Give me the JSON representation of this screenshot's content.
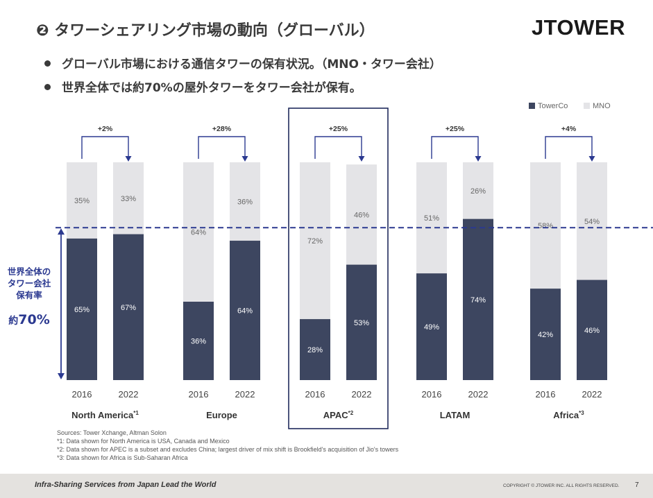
{
  "header": {
    "title": "❷ タワーシェアリング市場の動向（グローバル）",
    "logo": "JTOWER"
  },
  "bullets": [
    "グローバル市場における通信タワーの保有状況。（MNO・タワー会社）",
    "世界全体では約70%の屋外タワーをタワー会社が保有。"
  ],
  "chart_data": {
    "type": "bar",
    "stacked": true,
    "percent_stacked": true,
    "legend": {
      "position": "top-right",
      "items": [
        {
          "name": "TowerCo",
          "color": "#3d4660"
        },
        {
          "name": "MNO",
          "color": "#e4e4e7"
        }
      ]
    },
    "groups": [
      {
        "label": "North America",
        "note": "*1",
        "change": "+2%",
        "bars": [
          {
            "year": "2016",
            "towerco": 65,
            "mno": 35
          },
          {
            "year": "2022",
            "towerco": 67,
            "mno": 33
          }
        ]
      },
      {
        "label": "Europe",
        "note": "",
        "change": "+28%",
        "bars": [
          {
            "year": "2016",
            "towerco": 36,
            "mno": 64
          },
          {
            "year": "2022",
            "towerco": 64,
            "mno": 36
          }
        ]
      },
      {
        "label": "APAC",
        "note": "*2",
        "change": "+25%",
        "highlighted": true,
        "bars": [
          {
            "year": "2016",
            "towerco": 28,
            "mno": 72
          },
          {
            "year": "2022",
            "towerco": 53,
            "mno": 46
          }
        ]
      },
      {
        "label": "LATAM",
        "note": "",
        "change": "+25%",
        "bars": [
          {
            "year": "2016",
            "towerco": 49,
            "mno": 51
          },
          {
            "year": "2022",
            "towerco": 74,
            "mno": 26
          }
        ]
      },
      {
        "label": "Africa",
        "note": "*3",
        "change": "+4%",
        "bars": [
          {
            "year": "2016",
            "towerco": 42,
            "mno": 58
          },
          {
            "year": "2022",
            "towerco": 46,
            "mno": 54
          }
        ]
      }
    ],
    "reference_line": {
      "value": 70,
      "style": "dashed",
      "color": "#2b3990"
    },
    "callout": {
      "lines": [
        "世界全体の",
        "タワー会社",
        "保有率"
      ],
      "prefix": "約",
      "value": "70%"
    }
  },
  "sources": [
    "Sources: Tower Xchange, Altman Solon",
    "*1: Data shown for North America is USA, Canada and Mexico",
    "*2: Data shown for APEC is a subset and excludes China; largest driver of mix shift is Brookfield's acquisition of Jio's towers",
    "*3: Data shown for Africa is Sub-Saharan Africa"
  ],
  "footer": {
    "tagline": "Infra-Sharing Services from Japan Lead the World",
    "copyright": "COPYRIGHT © JTOWER INC. ALL RIGHTS RESERVED.",
    "page": "7"
  }
}
